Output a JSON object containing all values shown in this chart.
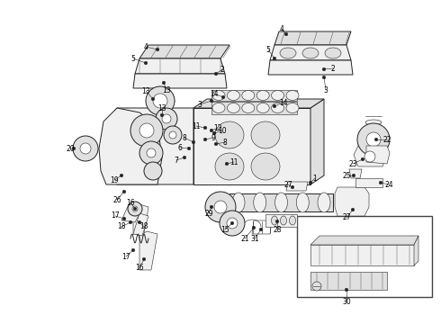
{
  "background_color": "#ffffff",
  "line_color": "#222222",
  "fig_width": 4.9,
  "fig_height": 3.6,
  "dpi": 100,
  "label_fontsize": 5.5,
  "lw_main": 0.7,
  "lw_thin": 0.4,
  "fill_light": "#f0f0f0",
  "fill_mid": "#e0e0e0",
  "fill_dark": "#c8c8c8",
  "fill_white": "#ffffff"
}
